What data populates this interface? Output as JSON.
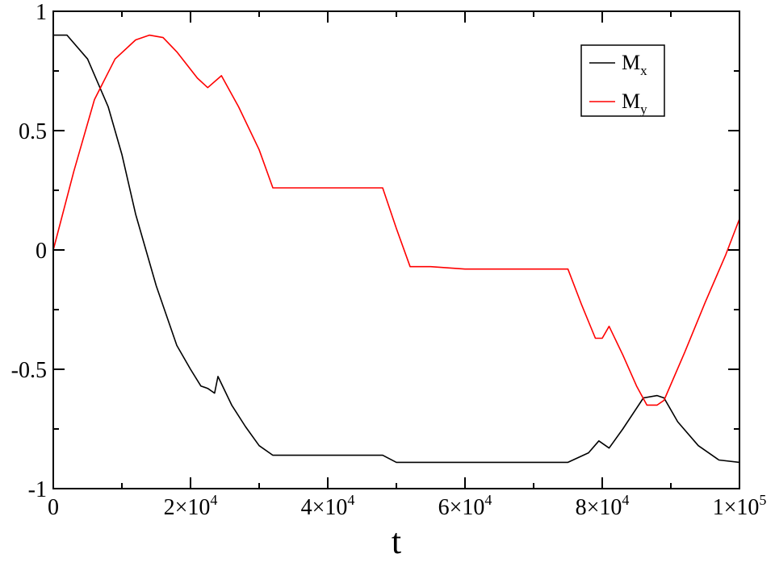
{
  "chart_data": {
    "type": "line",
    "title": "",
    "xlabel": "t",
    "ylabel": "",
    "xlim": [
      0,
      100000
    ],
    "ylim": [
      -1,
      1
    ],
    "grid": false,
    "legend_position": "top-right",
    "x_ticks": [
      {
        "value": 0,
        "base": "0",
        "exp": ""
      },
      {
        "value": 20000,
        "base": "2×10",
        "exp": "4"
      },
      {
        "value": 40000,
        "base": "4×10",
        "exp": "4"
      },
      {
        "value": 60000,
        "base": "6×10",
        "exp": "4"
      },
      {
        "value": 80000,
        "base": "8×10",
        "exp": "4"
      },
      {
        "value": 100000,
        "base": "1×10",
        "exp": "5"
      }
    ],
    "y_ticks": [
      {
        "value": -1,
        "label": "-1"
      },
      {
        "value": -0.5,
        "label": "-0.5"
      },
      {
        "value": 0,
        "label": "0"
      },
      {
        "value": 0.5,
        "label": "0.5"
      },
      {
        "value": 1,
        "label": "1"
      }
    ],
    "series": [
      {
        "name": "M",
        "subscript": "x",
        "color": "#000000",
        "x": [
          0,
          2000,
          5000,
          8000,
          10000,
          12000,
          15000,
          18000,
          20000,
          21500,
          22500,
          23500,
          24000,
          26000,
          28000,
          30000,
          32000,
          34000,
          40000,
          46000,
          48000,
          50000,
          55000,
          60000,
          65000,
          70000,
          75000,
          78000,
          79500,
          81000,
          83000,
          86000,
          88000,
          89000,
          91000,
          94000,
          97000,
          100000
        ],
        "y": [
          0.9,
          0.9,
          0.8,
          0.6,
          0.4,
          0.15,
          -0.15,
          -0.4,
          -0.5,
          -0.57,
          -0.58,
          -0.6,
          -0.53,
          -0.65,
          -0.74,
          -0.82,
          -0.86,
          -0.86,
          -0.86,
          -0.86,
          -0.86,
          -0.89,
          -0.89,
          -0.89,
          -0.89,
          -0.89,
          -0.89,
          -0.85,
          -0.8,
          -0.83,
          -0.75,
          -0.62,
          -0.61,
          -0.62,
          -0.72,
          -0.82,
          -0.88,
          -0.89
        ]
      },
      {
        "name": "M",
        "subscript": "y",
        "color": "#ff0000",
        "x": [
          0,
          3000,
          6000,
          9000,
          12000,
          14000,
          16000,
          18000,
          21000,
          22500,
          24500,
          27000,
          30000,
          32000,
          36000,
          40000,
          44000,
          48000,
          50000,
          52000,
          55000,
          60000,
          65000,
          70000,
          75000,
          77000,
          79000,
          80000,
          81000,
          83000,
          85000,
          86500,
          88000,
          89000,
          92000,
          95000,
          98000,
          100000
        ],
        "y": [
          0,
          0.33,
          0.63,
          0.8,
          0.88,
          0.9,
          0.89,
          0.83,
          0.72,
          0.68,
          0.73,
          0.6,
          0.42,
          0.26,
          0.26,
          0.26,
          0.26,
          0.26,
          0.09,
          -0.07,
          -0.07,
          -0.08,
          -0.08,
          -0.08,
          -0.08,
          -0.23,
          -0.37,
          -0.37,
          -0.32,
          -0.44,
          -0.57,
          -0.65,
          -0.65,
          -0.63,
          -0.43,
          -0.22,
          -0.02,
          0.13
        ]
      }
    ]
  }
}
